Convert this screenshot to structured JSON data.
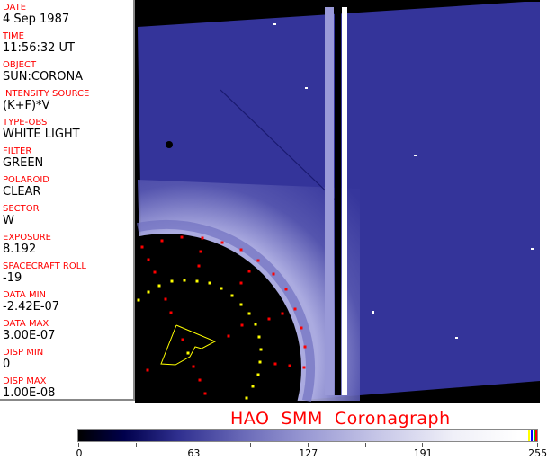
{
  "header_fields": [
    {
      "label": "DATE",
      "value": "4 Sep 1987"
    },
    {
      "label": "TIME",
      "value": "11:56:32 UT"
    },
    {
      "label": "OBJECT",
      "value": "SUN:CORONA"
    },
    {
      "label": "INTENSITY SOURCE",
      "value": "(K+F)*V"
    },
    {
      "label": "TYPE-OBS",
      "value": "WHITE LIGHT"
    },
    {
      "label": "FILTER",
      "value": "GREEN"
    },
    {
      "label": "POLAROID",
      "value": "CLEAR"
    },
    {
      "label": "SECTOR",
      "value": "W"
    },
    {
      "label": "EXPOSURE",
      "value": "8.192"
    },
    {
      "label": "SPACECRAFT ROLL",
      "value": "-19"
    },
    {
      "label": "DATA MIN",
      "value": "-2.42E-07"
    },
    {
      "label": "DATA MAX",
      "value": "3.00E-07"
    },
    {
      "label": "DISP MIN",
      "value": "0"
    },
    {
      "label": "DISP MAX",
      "value": "1.00E-08"
    }
  ],
  "title": "HAO  SMM  Coronagraph",
  "colorbar": {
    "ticks": [
      "0",
      "63",
      "127",
      "191",
      "255"
    ],
    "end_colors": [
      "#ffff00",
      "#0000ff",
      "#00c000",
      "#ff0000"
    ]
  },
  "colors": {
    "label": "#ff0000",
    "image_blue": "#32329a"
  }
}
